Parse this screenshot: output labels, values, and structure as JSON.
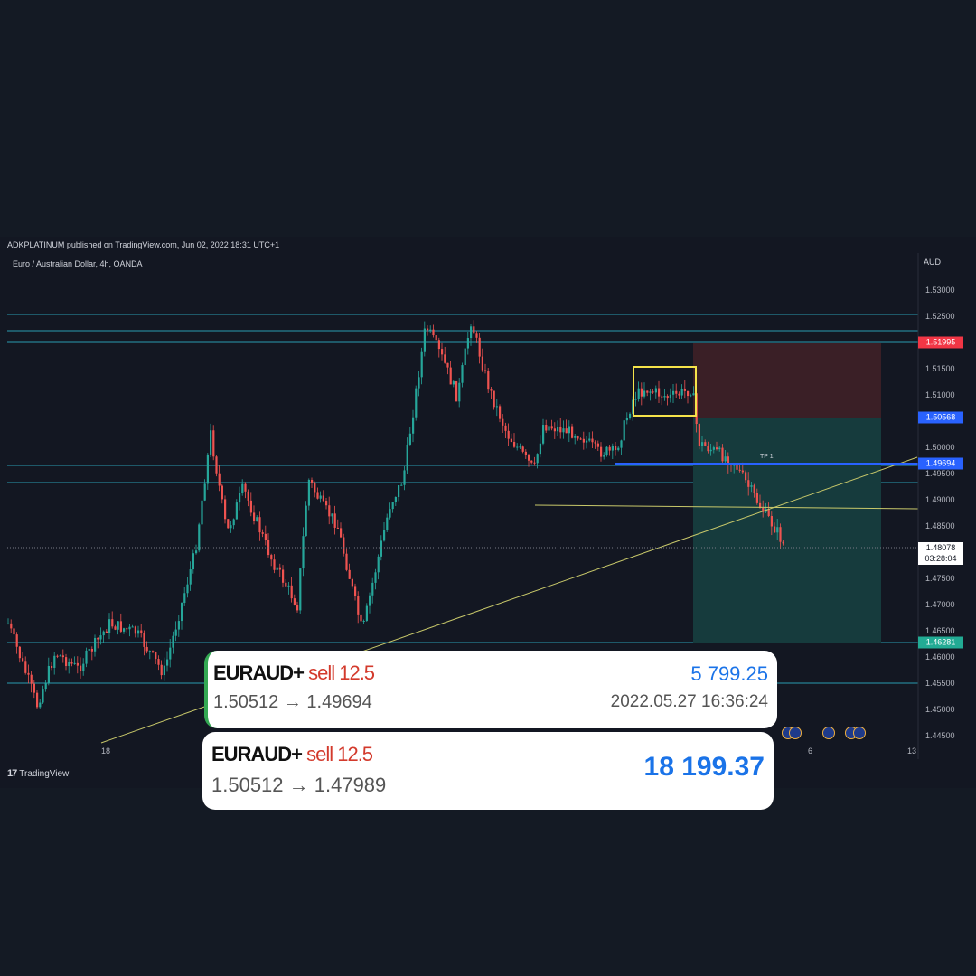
{
  "header": {
    "published": "ADKPLATINUM published on TradingView.com, Jun 02, 2022 18:31 UTC+1",
    "symbol": "Euro / Australian Dollar, 4h, OANDA",
    "currency": "AUD"
  },
  "price_axis": {
    "ticks": [
      "1.53000",
      "1.52500",
      "1.51500",
      "1.51000",
      "1.50000",
      "1.49500",
      "1.49000",
      "1.48500",
      "1.47500",
      "1.47000",
      "1.46500",
      "1.46000",
      "1.45500",
      "1.45000",
      "1.44500"
    ],
    "tags": [
      {
        "label": "1.51995",
        "color": "#f23645"
      },
      {
        "label": "1.50568",
        "color": "#2962ff"
      },
      {
        "label": "1.49694",
        "color": "#2962ff"
      },
      {
        "label": "1.46281",
        "color": "#22ab94"
      }
    ],
    "current_price": "1.48078",
    "countdown": "03:28:04"
  },
  "time_axis": {
    "ticks": [
      "18",
      "6",
      "13"
    ]
  },
  "annotations": {
    "tp_label": "TP 1"
  },
  "branding": {
    "logo_mark": "17",
    "name": "TradingView"
  },
  "trades": [
    {
      "symbol": "EURAUD+",
      "side": "sell 12.5",
      "route": "1.50512 → 1.49694",
      "profit": "5 799.25",
      "timestamp": "2022.05.27 16:36:24"
    },
    {
      "symbol": "EURAUD+",
      "side": "sell 12.5",
      "route": "1.50512 → 1.47989",
      "profit": "18 199.37"
    }
  ],
  "colors": {
    "up": "#26a69a",
    "down": "#ef5350",
    "background": "#131722",
    "level_line": "#2a9bb0",
    "trend_line": "#c8c86a",
    "box": "#f5e34a",
    "profit": "#1a73e8",
    "sell": "#d33a2c"
  }
}
